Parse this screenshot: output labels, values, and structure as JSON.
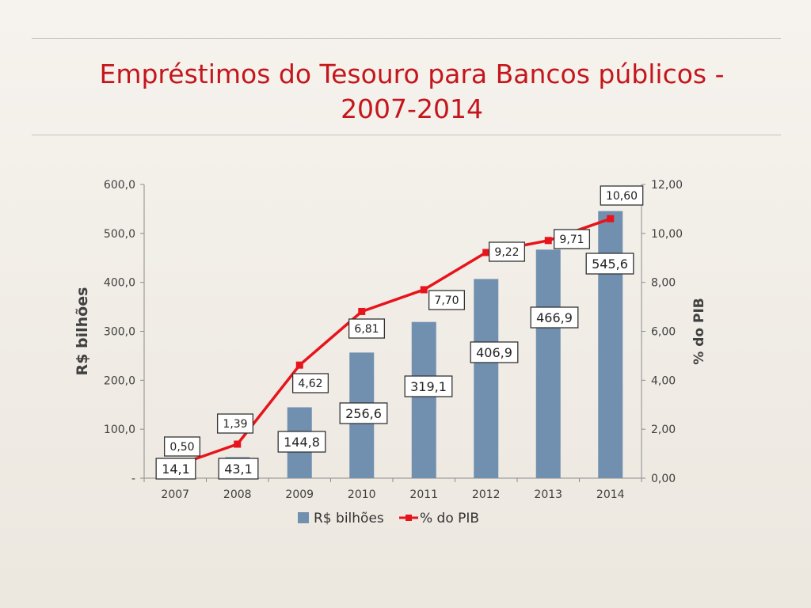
{
  "slide": {
    "title_line1": "Empréstimos do Tesouro para Bancos públicos -",
    "title_line2": "2007-2014"
  },
  "chart_data": {
    "type": "bar",
    "categories": [
      "2007",
      "2008",
      "2009",
      "2010",
      "2011",
      "2012",
      "2013",
      "2014"
    ],
    "series": [
      {
        "name": "R$ bilhões",
        "type": "bar",
        "axis": "left",
        "color": "#7190b0",
        "values": [
          14.1,
          43.1,
          144.8,
          256.6,
          319.1,
          406.9,
          466.9,
          545.6
        ],
        "labels": [
          "14,1",
          "43,1",
          "144,8",
          "256,6",
          "319,1",
          "406,9",
          "466,9",
          "545,6"
        ]
      },
      {
        "name": "% do PIB",
        "type": "line",
        "axis": "right",
        "color": "#e8141b",
        "values": [
          0.5,
          1.39,
          4.62,
          6.81,
          7.7,
          9.22,
          9.71,
          10.6
        ],
        "labels": [
          "0,50",
          "1,39",
          "4,62",
          "6,81",
          "7,70",
          "9,22",
          "9,71",
          "10,60"
        ]
      }
    ],
    "ylabel": "R$ bilhões",
    "y2label": "% do PIB",
    "ylim": [
      0,
      600
    ],
    "y2lim": [
      0,
      12
    ],
    "yticks": [
      "-",
      "100,0",
      "200,0",
      "300,0",
      "400,0",
      "500,0",
      "600,0"
    ],
    "y2ticks": [
      "0,00",
      "2,00",
      "4,00",
      "6,00",
      "8,00",
      "10,00",
      "12,00"
    ],
    "grid": false,
    "legend": "bottom"
  }
}
